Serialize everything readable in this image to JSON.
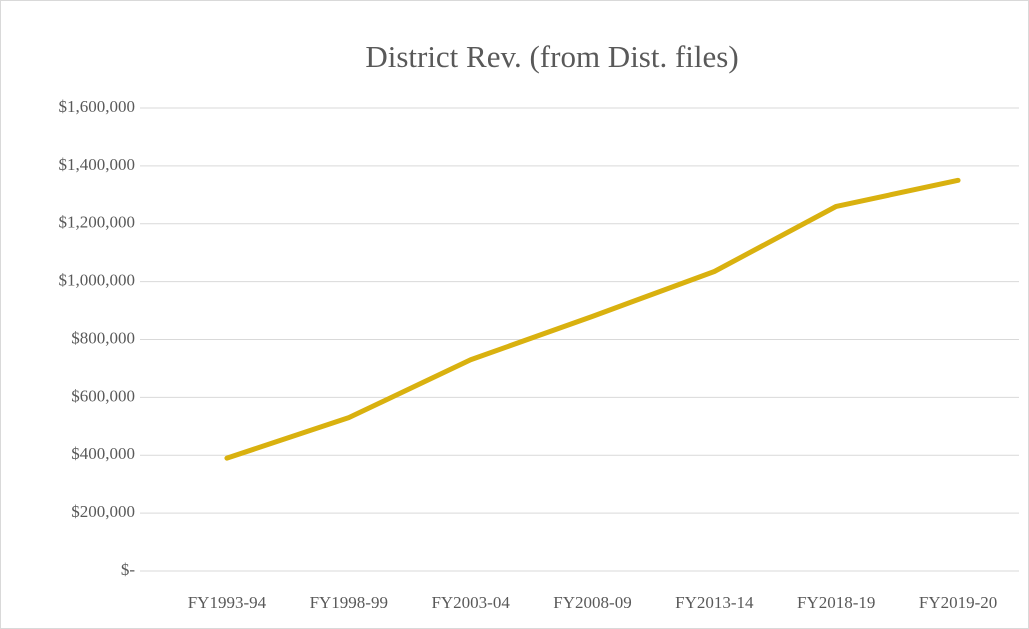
{
  "chart_data": {
    "type": "line",
    "title": "District Rev. (from Dist. files)",
    "categories": [
      "FY1993-94",
      "FY1998-99",
      "FY2003-04",
      "FY2008-09",
      "FY2013-14",
      "FY2018-19",
      "FY2019-20"
    ],
    "series": [
      {
        "name": "District Rev.",
        "color": "#d9b10f",
        "values": [
          390000,
          530000,
          730000,
          880000,
          1035000,
          1260000,
          1350000
        ]
      }
    ],
    "ylim": [
      0,
      1600000
    ],
    "yticks": [
      {
        "value": 0,
        "label": "$-"
      },
      {
        "value": 200000,
        "label": "$200,000"
      },
      {
        "value": 400000,
        "label": "$400,000"
      },
      {
        "value": 600000,
        "label": "$600,000"
      },
      {
        "value": 800000,
        "label": "$800,000"
      },
      {
        "value": 1000000,
        "label": "$1,000,000"
      },
      {
        "value": 1200000,
        "label": "$1,200,000"
      },
      {
        "value": 1400000,
        "label": "$1,400,000"
      },
      {
        "value": 1600000,
        "label": "$1,600,000"
      }
    ],
    "grid": true,
    "legend": false
  }
}
